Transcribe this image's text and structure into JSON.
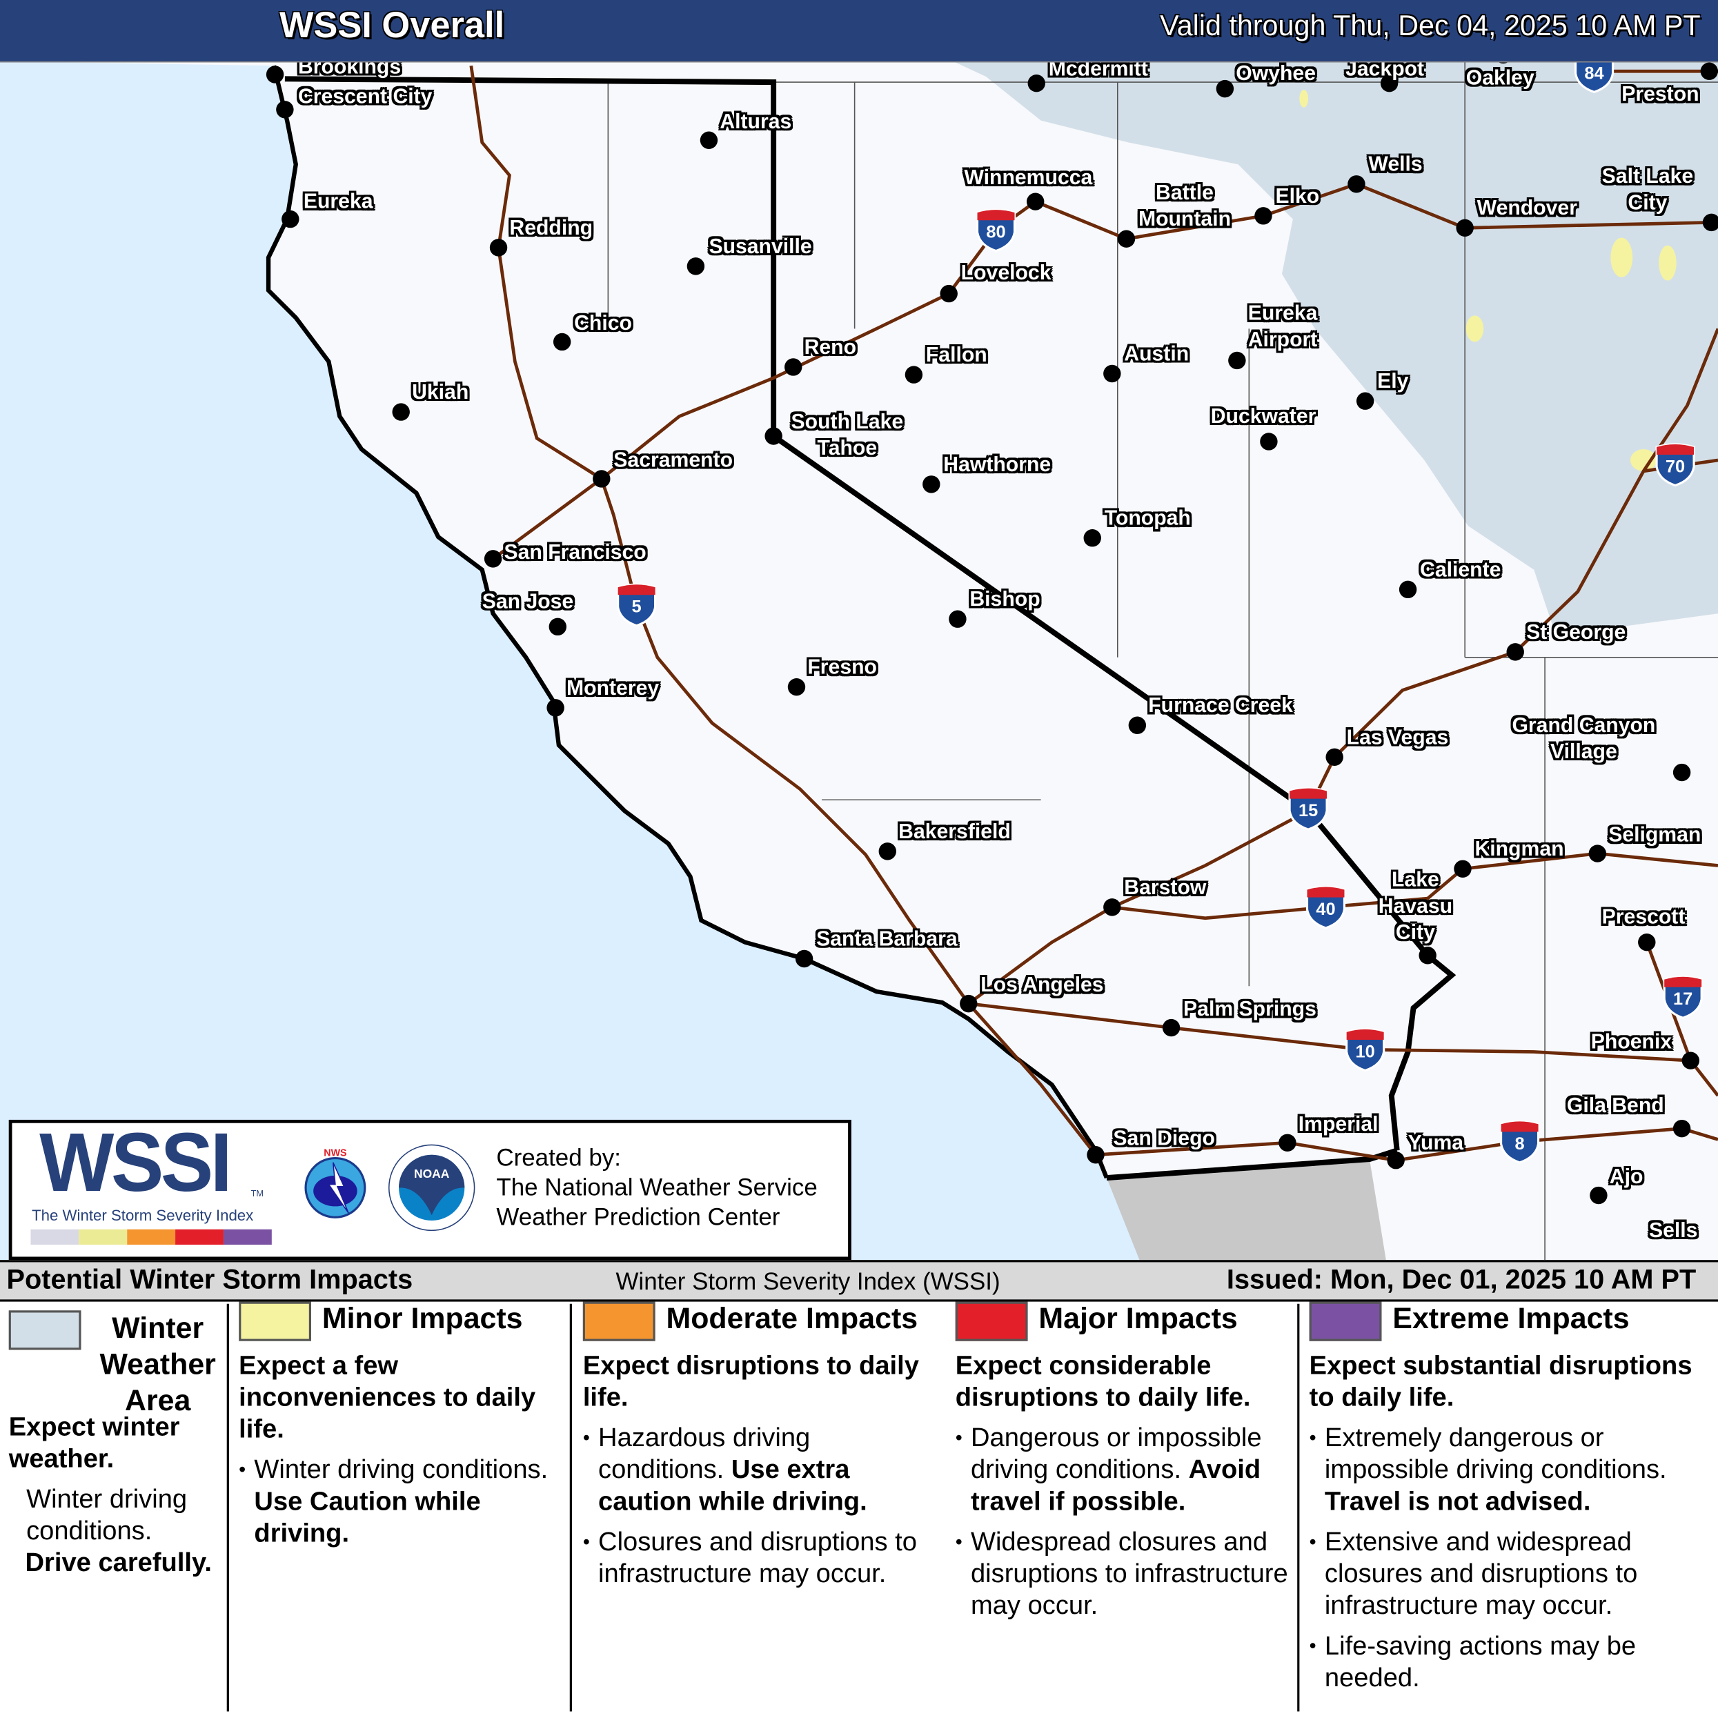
{
  "header": {
    "title": "WSSI Overall",
    "valid": "Valid through Thu, Dec 04, 2025 10 AM PT"
  },
  "colors": {
    "header_bg": "#27417a",
    "ocean": "#dcefff",
    "land": "#f8f9fc",
    "winter_weather_area": "#d3dfe8",
    "minor": "#f5f3a0",
    "moderate": "#f5952f",
    "major": "#e3202a",
    "extreme": "#7b52a3",
    "roads": "#6b2a0a",
    "mexico": "#c8c8c8"
  },
  "cities": [
    "Brookings",
    "Crescent City",
    "Eureka",
    "Alturas",
    "Redding",
    "Susanville",
    "Chico",
    "Ukiah",
    "Reno",
    "South Lake\nTahoe",
    "Sacramento",
    "San Francisco",
    "San Jose",
    "Monterey",
    "Fresno",
    "Bakersfield",
    "Santa Barbara",
    "Los Angeles",
    "San Diego",
    "Imperial",
    "Yuma",
    "Palm Springs",
    "Barstow",
    "Lake\nHavasu\nCity",
    "Kingman",
    "Seligman",
    "Prescott",
    "Phoenix",
    "Gila Bend",
    "Ajo",
    "Sells",
    "Las Vegas",
    "Grand Canyon\nVillage",
    "St George",
    "Caliente",
    "Furnace Creek",
    "Bishop",
    "Tonopah",
    "Hawthorne",
    "Fallon",
    "Lovelock",
    "Winnemucca",
    "Battle\nMountain",
    "Elko",
    "Wells",
    "Austin",
    "Eureka\nAirport",
    "Ely",
    "Duckwater",
    "Wendover",
    "Salt Lake\nCity",
    "Oakley",
    "Owyhee",
    "Jackpot",
    "Mcdermitt",
    "Preston"
  ],
  "interstates": [
    "84",
    "80",
    "5",
    "15",
    "40",
    "10",
    "17",
    "70",
    "8"
  ],
  "logo": {
    "wssi": "WSSI",
    "tm": "TM",
    "subtitle": "The Winter Storm Severity Index",
    "nws": "NATIONAL WEATHER SERVICE",
    "noaa": "NOAA",
    "created_by": "Created by:",
    "org1": "The National Weather Service",
    "org2": "Weather Prediction Center"
  },
  "legend": {
    "title": "Potential Winter Storm Impacts",
    "index": "Winter Storm Severity Index (WSSI)",
    "issued": "Issued: Mon, Dec 01, 2025 10 AM PT",
    "wwa": {
      "title": "Winter Weather Area",
      "expect": "Expect winter weather.",
      "text": "Winter driving conditions.",
      "bold": "Drive carefully."
    },
    "minor": {
      "title": "Minor Impacts",
      "expect": "Expect a few inconveniences to daily life.",
      "b1": "Winter driving conditions. ",
      "b1_bold": "Use Caution while driving."
    },
    "moderate": {
      "title": "Moderate Impacts",
      "expect": "Expect disruptions to daily life.",
      "b1": "Hazardous driving conditions. ",
      "b1_bold": "Use extra caution while driving.",
      "b2": "Closures and disruptions to infrastructure may occur."
    },
    "major": {
      "title": "Major Impacts",
      "expect": "Expect considerable disruptions to daily life.",
      "b1": "Dangerous or impossible driving conditions. ",
      "b1_bold": "Avoid travel if possible.",
      "b2": "Widespread closures and disruptions to infrastructure may occur."
    },
    "extreme": {
      "title": "Extreme Impacts",
      "expect": "Expect substantial disruptions to daily life.",
      "b1": "Extremely dangerous or impossible driving conditions. ",
      "b1_bold": "Travel is not advised.",
      "b2": "Extensive and widespread closures and disruptions to infrastructure may occur.",
      "b3": "Life-saving actions may be needed."
    }
  }
}
